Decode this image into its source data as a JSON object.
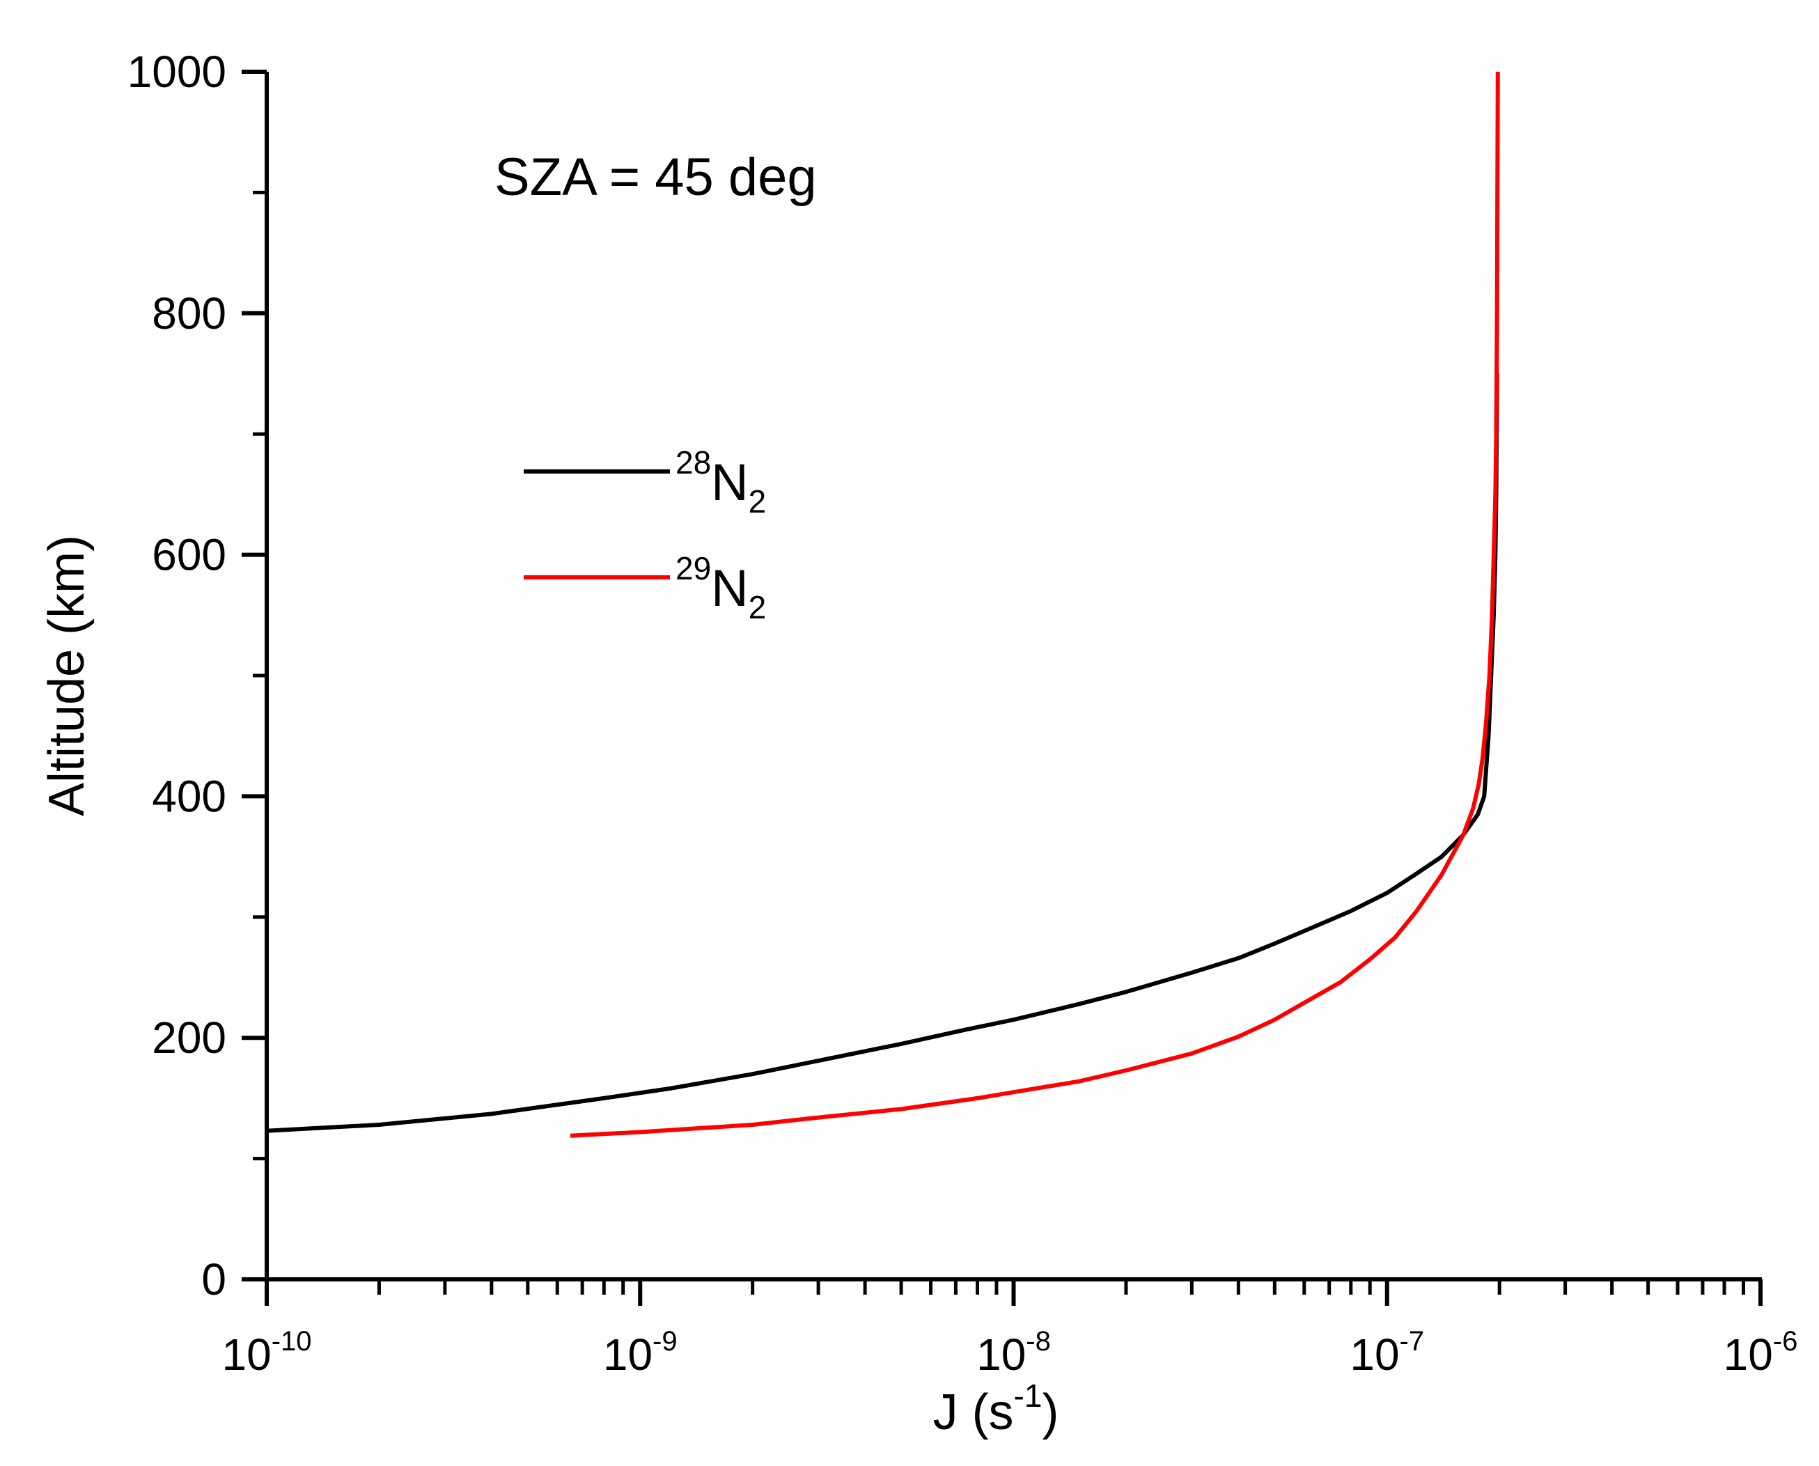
{
  "chart_data": {
    "type": "line",
    "title": "",
    "annotation": "SZA = 45 deg",
    "xlabel": {
      "prefix": "J (s",
      "sup": "-1",
      "suffix": ")"
    },
    "ylabel": "Altitude (km)",
    "xscale": "log",
    "xlim": [
      1e-10,
      1e-06
    ],
    "ylim": [
      0,
      1000
    ],
    "grid": false,
    "legend_position": "upper-left",
    "xticks": [
      {
        "value": 1e-10,
        "base": "10",
        "exp": "-10"
      },
      {
        "value": 1e-09,
        "base": "10",
        "exp": "-9"
      },
      {
        "value": 1e-08,
        "base": "10",
        "exp": "-8"
      },
      {
        "value": 1e-07,
        "base": "10",
        "exp": "-7"
      },
      {
        "value": 1e-06,
        "base": "10",
        "exp": "-6"
      }
    ],
    "yticks": [
      {
        "value": 0,
        "label": "0"
      },
      {
        "value": 200,
        "label": "200"
      },
      {
        "value": 400,
        "label": "400"
      },
      {
        "value": 600,
        "label": "600"
      },
      {
        "value": 800,
        "label": "800"
      },
      {
        "value": 1000,
        "label": "1000"
      }
    ],
    "series": [
      {
        "name": "28N2",
        "legend": {
          "sup": "28",
          "main": "N",
          "sub": "2"
        },
        "color": "#000000",
        "points": [
          [
            1e-10,
            123
          ],
          [
            2e-10,
            128
          ],
          [
            4e-10,
            137
          ],
          [
            8e-10,
            150
          ],
          [
            1.2e-09,
            158
          ],
          [
            2e-09,
            170
          ],
          [
            3e-09,
            181
          ],
          [
            5e-09,
            195
          ],
          [
            7.5e-09,
            207
          ],
          [
            1e-08,
            215
          ],
          [
            1.5e-08,
            228
          ],
          [
            2e-08,
            238
          ],
          [
            3e-08,
            254
          ],
          [
            4e-08,
            266
          ],
          [
            5e-08,
            278
          ],
          [
            6.5e-08,
            293
          ],
          [
            8e-08,
            305
          ],
          [
            1e-07,
            320
          ],
          [
            1.2e-07,
            336
          ],
          [
            1.4e-07,
            350
          ],
          [
            1.6e-07,
            368
          ],
          [
            1.75e-07,
            385
          ],
          [
            1.82e-07,
            400
          ],
          [
            1.87e-07,
            450
          ],
          [
            1.9e-07,
            500
          ],
          [
            1.93e-07,
            550
          ],
          [
            1.95e-07,
            600
          ],
          [
            1.96e-07,
            650
          ],
          [
            1.965e-07,
            700
          ],
          [
            1.97e-07,
            750
          ]
        ]
      },
      {
        "name": "29N2",
        "legend": {
          "sup": "29",
          "main": "N",
          "sub": "2"
        },
        "color": "#ff0000",
        "points": [
          [
            6.5e-10,
            119
          ],
          [
            1e-09,
            122
          ],
          [
            2e-09,
            128
          ],
          [
            3e-09,
            134
          ],
          [
            5e-09,
            141
          ],
          [
            8e-09,
            150
          ],
          [
            1e-08,
            155
          ],
          [
            1.5e-08,
            164
          ],
          [
            2e-08,
            173
          ],
          [
            3e-08,
            187
          ],
          [
            4e-08,
            201
          ],
          [
            5e-08,
            215
          ],
          [
            6e-08,
            229
          ],
          [
            7.5e-08,
            246
          ],
          [
            9e-08,
            265
          ],
          [
            1.05e-07,
            283
          ],
          [
            1.2e-07,
            305
          ],
          [
            1.4e-07,
            335
          ],
          [
            1.6e-07,
            368
          ],
          [
            1.7e-07,
            390
          ],
          [
            1.76e-07,
            410
          ],
          [
            1.8e-07,
            430
          ],
          [
            1.84e-07,
            460
          ],
          [
            1.88e-07,
            500
          ],
          [
            1.91e-07,
            550
          ],
          [
            1.93e-07,
            600
          ],
          [
            1.95e-07,
            650
          ],
          [
            1.96e-07,
            700
          ],
          [
            1.97e-07,
            800
          ],
          [
            1.975e-07,
            900
          ],
          [
            1.98e-07,
            1000
          ]
        ]
      }
    ]
  }
}
